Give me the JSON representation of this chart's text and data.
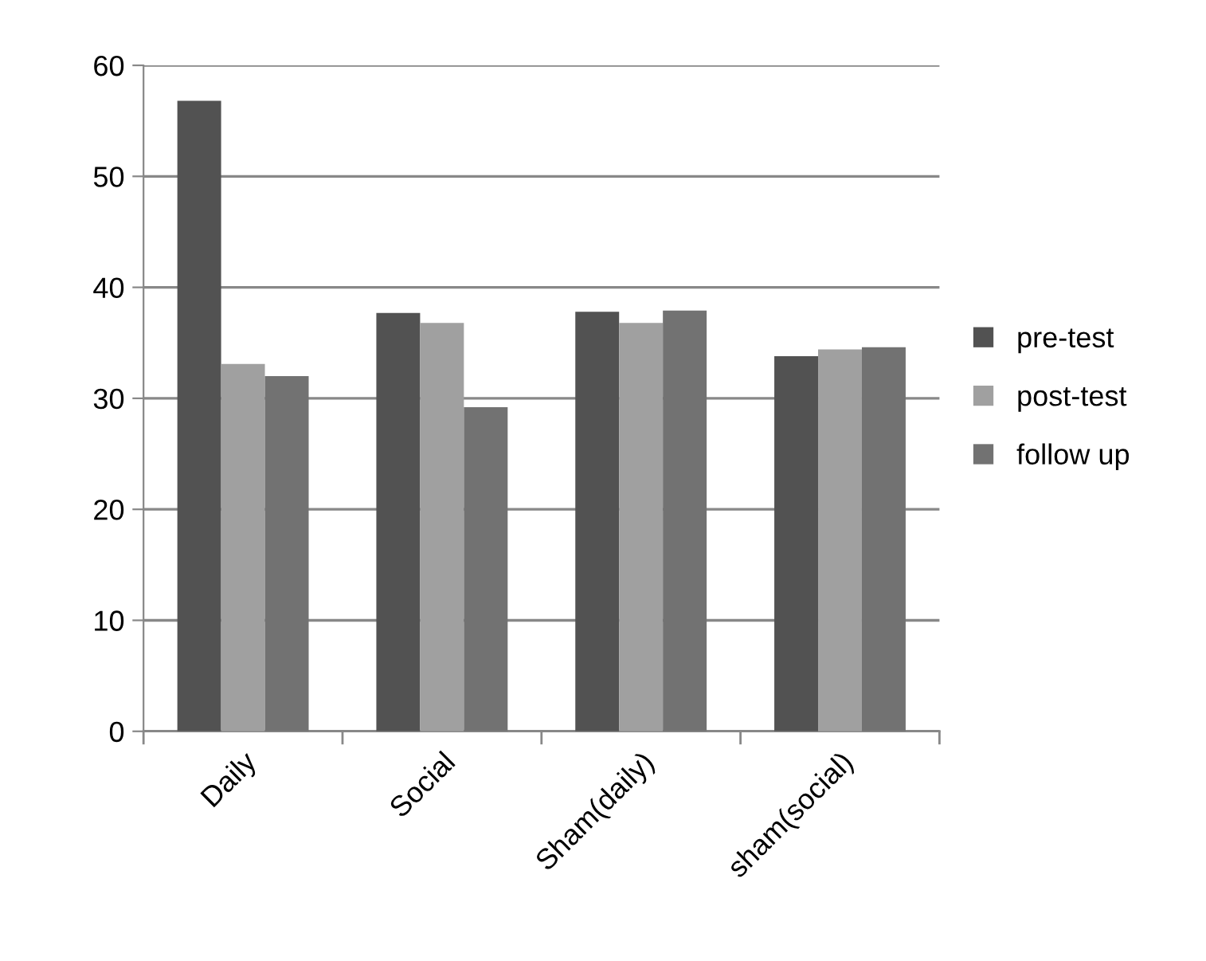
{
  "chart_data": {
    "type": "bar",
    "categories": [
      "Daily",
      "Social",
      "Sham(daily)",
      "sham(social)"
    ],
    "series": [
      {
        "name": "pre-test",
        "color": "#525252",
        "values": [
          56.8,
          37.7,
          37.8,
          33.8
        ]
      },
      {
        "name": "post-test",
        "color": "#a0a0a0",
        "values": [
          33.1,
          36.8,
          36.8,
          34.4
        ]
      },
      {
        "name": "follow up",
        "color": "#727272",
        "values": [
          32.0,
          29.2,
          37.9,
          34.6
        ]
      }
    ],
    "ylim": [
      0,
      60
    ],
    "yticks": [
      0,
      10,
      20,
      30,
      40,
      50,
      60
    ],
    "grid": "y",
    "legend": "right"
  }
}
